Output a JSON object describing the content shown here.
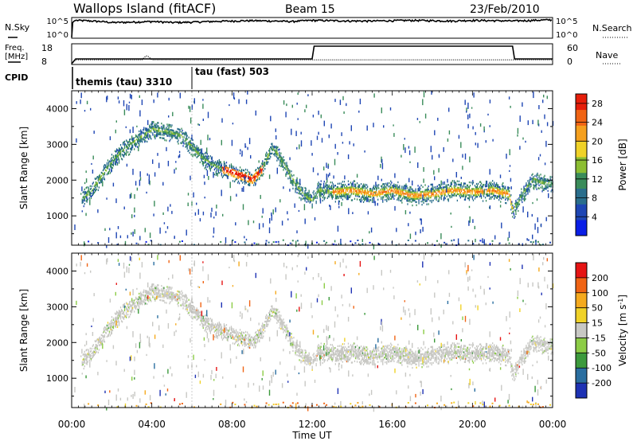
{
  "header": {
    "station": "Wallops Island (fitACF)",
    "beam": "Beam 15",
    "date": "23/Feb/2010"
  },
  "nsky_panel": {
    "left_label": "N.Sky",
    "right_label": "N.Search",
    "left_ticks": [
      "10^5",
      "10^0"
    ],
    "right_ticks": [
      "10^5",
      "10^0"
    ]
  },
  "freq_panel": {
    "left_label_1": "Freq.",
    "left_label_2": "[MHz]",
    "right_label": "Nave",
    "left_ticks": [
      "18",
      "8"
    ],
    "right_ticks": [
      "60",
      "0"
    ]
  },
  "cpid_panel": {
    "label": "CPID",
    "segments": [
      {
        "name": "themis (tau) 3310",
        "start_hour": 0,
        "end_hour": 6
      },
      {
        "name": "tau (fast) 503",
        "start_hour": 6,
        "end_hour": 24
      }
    ]
  },
  "colors": {
    "power": [
      "#0a1ee6",
      "#1e46b4",
      "#2a6e8c",
      "#3a8c5a",
      "#8cbe32",
      "#f0d228",
      "#f5a01e",
      "#f06414",
      "#e61e0a"
    ],
    "velocity": [
      "#1e32b4",
      "#2a6ea0",
      "#3c9a3c",
      "#8ccc46",
      "#c8c8c4",
      "#f0d228",
      "#f5aa1e",
      "#f06414",
      "#e61414"
    ]
  },
  "chart_data": [
    {
      "type": "line",
      "panel": "N.Sky / N.Search",
      "x_unit": "hour UT",
      "y_scale": "log",
      "ylim": [
        1,
        100000
      ],
      "series": [
        {
          "name": "N.Sky",
          "x": [
            0,
            0.2,
            1,
            2,
            3,
            4,
            5,
            6,
            7,
            8,
            9,
            10,
            11,
            12,
            13,
            14,
            15,
            16,
            17,
            18,
            19,
            20,
            21,
            22,
            23,
            24
          ],
          "values": [
            1,
            30000,
            20000,
            8000,
            10000,
            15000,
            8000,
            10000,
            15000,
            20000,
            25000,
            20000,
            15000,
            30000,
            25000,
            20000,
            20000,
            25000,
            30000,
            25000,
            20000,
            30000,
            25000,
            20000,
            30000,
            40000
          ]
        }
      ]
    },
    {
      "type": "line",
      "panel": "Freq. / Nave",
      "x_unit": "hour UT",
      "series": [
        {
          "name": "Freq.",
          "x": [
            0,
            0.2,
            3.5,
            3.7,
            3.8,
            4.0,
            6.0,
            12.0,
            16.6,
            16.8,
            22.0,
            22.2,
            24
          ],
          "values": [
            8,
            10,
            10,
            12,
            12,
            10,
            10,
            10,
            10,
            10,
            10,
            10,
            10
          ]
        },
        {
          "name": "Nave",
          "x": [
            0,
            0.2,
            12.0,
            12.1,
            22.0,
            22.1,
            24
          ],
          "values": [
            0,
            15,
            15,
            55,
            55,
            15,
            15
          ]
        }
      ]
    },
    {
      "type": "heatmap",
      "panel": "Power",
      "xlabel": "Time UT",
      "ylabel": "Slant Range [km]",
      "xlim": [
        0,
        24
      ],
      "ylim": [
        180,
        4500
      ],
      "colorbar_label": "Power [dB]",
      "colorbar_ticks": [
        28,
        24,
        20,
        16,
        12,
        8,
        4
      ],
      "colorbar_range": [
        0,
        30
      ],
      "echo_band_center": [
        [
          0.5,
          1450
        ],
        [
          1,
          1700
        ],
        [
          1.5,
          2100
        ],
        [
          2,
          2500
        ],
        [
          2.5,
          2800
        ],
        [
          3,
          3000
        ],
        [
          3.5,
          3200
        ],
        [
          4,
          3400
        ],
        [
          4.5,
          3350
        ],
        [
          5,
          3300
        ],
        [
          5.5,
          3200
        ],
        [
          6,
          2900
        ],
        [
          6.5,
          2600
        ],
        [
          7,
          2400
        ],
        [
          7.5,
          2300
        ],
        [
          8,
          2200
        ],
        [
          8.5,
          2100
        ],
        [
          9,
          2000
        ],
        [
          9.5,
          2300
        ],
        [
          10,
          2900
        ],
        [
          10.5,
          2500
        ],
        [
          11,
          2000
        ],
        [
          11.5,
          1600
        ],
        [
          12,
          1400
        ],
        [
          12.3,
          1700
        ],
        [
          13,
          1650
        ],
        [
          14,
          1700
        ],
        [
          15,
          1600
        ],
        [
          16,
          1700
        ],
        [
          17,
          1550
        ],
        [
          18,
          1600
        ],
        [
          19,
          1700
        ],
        [
          20,
          1650
        ],
        [
          21,
          1700
        ],
        [
          21.8,
          1600
        ],
        [
          22,
          1100
        ],
        [
          22.5,
          1600
        ],
        [
          23,
          2000
        ],
        [
          23.5,
          1900
        ],
        [
          24,
          1850
        ]
      ],
      "peak_power_regions": [
        {
          "x_range": [
            7.5,
            9.5
          ],
          "range_km": 2050,
          "power_db": 26
        },
        {
          "x_range": [
            13,
            22
          ],
          "range_km": 1600,
          "power_db": 18
        }
      ]
    },
    {
      "type": "heatmap",
      "panel": "Velocity",
      "xlabel": "Time UT",
      "ylabel": "Slant Range [km]",
      "xlim": [
        0,
        24
      ],
      "ylim": [
        180,
        4500
      ],
      "colorbar_label": "Velocity [m s-1]",
      "colorbar_ticks": [
        200,
        100,
        50,
        15,
        -15,
        -50,
        -100,
        -200
      ],
      "colorbar_range": [
        -250,
        250
      ],
      "dominant_velocity_m_s": 0
    }
  ],
  "xaxis": {
    "label": "Time UT",
    "ticks": [
      "00:00",
      "04:00",
      "08:00",
      "12:00",
      "16:00",
      "20:00",
      "00:00"
    ],
    "tick_hours": [
      0,
      4,
      8,
      12,
      16,
      20,
      24
    ]
  },
  "yaxis": {
    "label": "Slant Range [km]",
    "ticks": [
      "1000",
      "2000",
      "3000",
      "4000"
    ],
    "tick_values": [
      1000,
      2000,
      3000,
      4000
    ]
  },
  "power_colorbar": {
    "label": "Power [dB]",
    "ticks": [
      "28",
      "24",
      "20",
      "16",
      "12",
      "8",
      "4"
    ]
  },
  "velocity_colorbar": {
    "label": "Velocity [m s",
    "label_exp": "-1",
    "label_end": "]",
    "ticks": [
      "200",
      "100",
      "50",
      "15",
      "-15",
      "-50",
      "-100",
      "-200"
    ]
  }
}
